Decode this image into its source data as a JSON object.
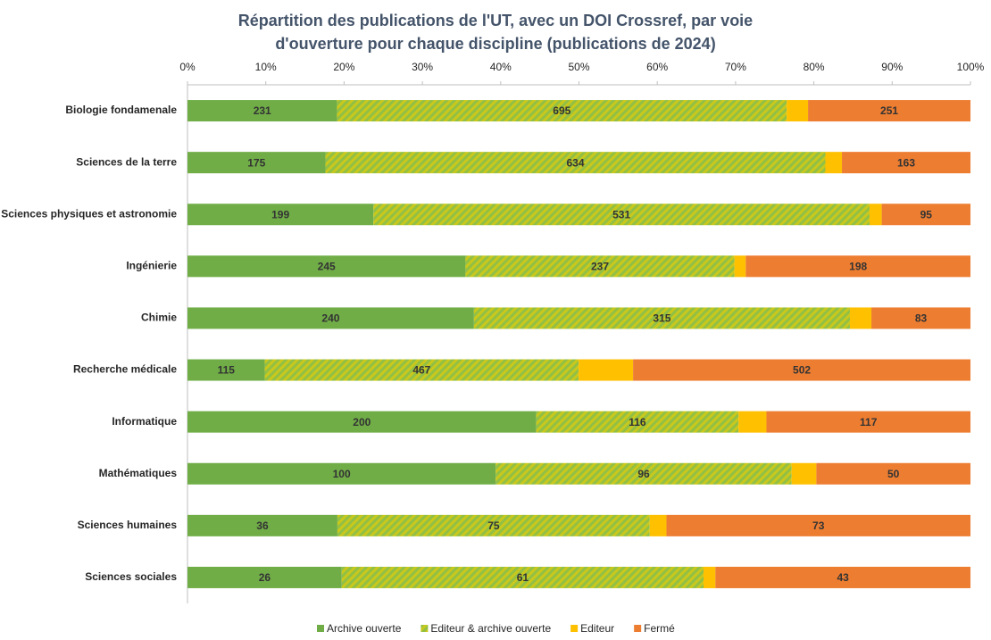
{
  "chart_data": {
    "type": "bar",
    "orientation": "horizontal",
    "stacking": "percent",
    "title": "Répartition des publications de l'UT, avec un DOI Crossref, par voie d'ouverture pour chaque discipline (publications de 2024)",
    "categories": [
      "Biologie fondamenale",
      "Sciences de la terre",
      "Sciences physiques et astronomie",
      "Ingénierie",
      "Chimie",
      "Recherche médicale",
      "Informatique",
      "Mathématiques",
      "Sciences humaines",
      "Sciences sociales"
    ],
    "series": [
      {
        "name": "Archive ouverte",
        "color": "#70ad47",
        "labels": true,
        "values": [
          231,
          175,
          199,
          245,
          240,
          115,
          200,
          100,
          36,
          26
        ]
      },
      {
        "name": "Editeur & archive ouverte",
        "color": "#a9c934",
        "pattern": "hatch",
        "labels": true,
        "values": [
          695,
          634,
          531,
          237,
          315,
          467,
          116,
          96,
          75,
          61
        ]
      },
      {
        "name": "Editeur",
        "color": "#ffc000",
        "labels": false,
        "values": [
          33,
          21,
          13,
          10,
          18,
          81,
          16,
          8,
          4,
          2
        ]
      },
      {
        "name": "Fermé",
        "color": "#ed7d31",
        "labels": true,
        "values": [
          251,
          163,
          95,
          198,
          83,
          502,
          117,
          50,
          73,
          43
        ]
      }
    ],
    "xlim": [
      0,
      100
    ],
    "xticks": [
      {
        "value": 0,
        "label": "0%"
      },
      {
        "value": 10,
        "label": "10%"
      },
      {
        "value": 20,
        "label": "20%"
      },
      {
        "value": 30,
        "label": "30%"
      },
      {
        "value": 40,
        "label": "40%"
      },
      {
        "value": 50,
        "label": "50%"
      },
      {
        "value": 60,
        "label": "60%"
      },
      {
        "value": 70,
        "label": "70%"
      },
      {
        "value": 80,
        "label": "80%"
      },
      {
        "value": 90,
        "label": "90%"
      },
      {
        "value": 100,
        "label": "100%"
      }
    ],
    "legend": "bottom"
  }
}
